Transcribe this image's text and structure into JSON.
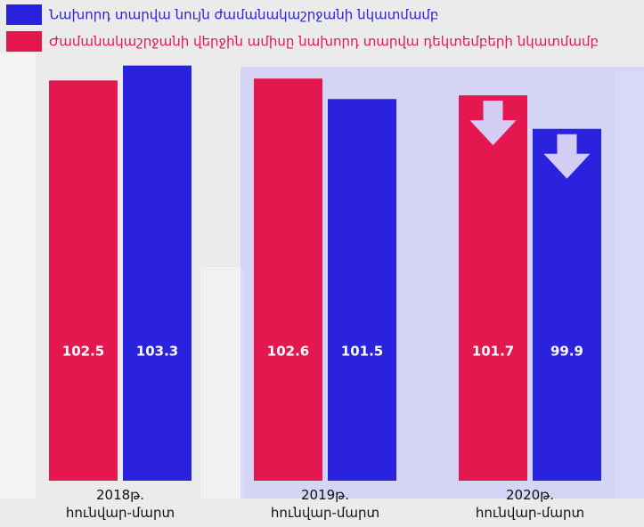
{
  "chart_data": {
    "type": "bar",
    "categories": [
      "2018թ.\nհունվար-մարտ",
      "2019թ.\nհունվար-մարտ",
      "2020թ.\nհունվար-մարտ"
    ],
    "series": [
      {
        "name": "Ժամանակաշրջանի վերջին ամիսը նախորդ տարվա դեկտեմբերի նկատմամբ",
        "color": "#e5174f",
        "values": [
          102.5,
          102.6,
          101.7
        ]
      },
      {
        "name": "Նախորդ տարվա նույն ժամանակաշրջանի նկատմամբ",
        "color": "#2b22df",
        "values": [
          103.3,
          101.5,
          99.9
        ]
      }
    ],
    "ylim": [
      81,
      104
    ]
  }
}
